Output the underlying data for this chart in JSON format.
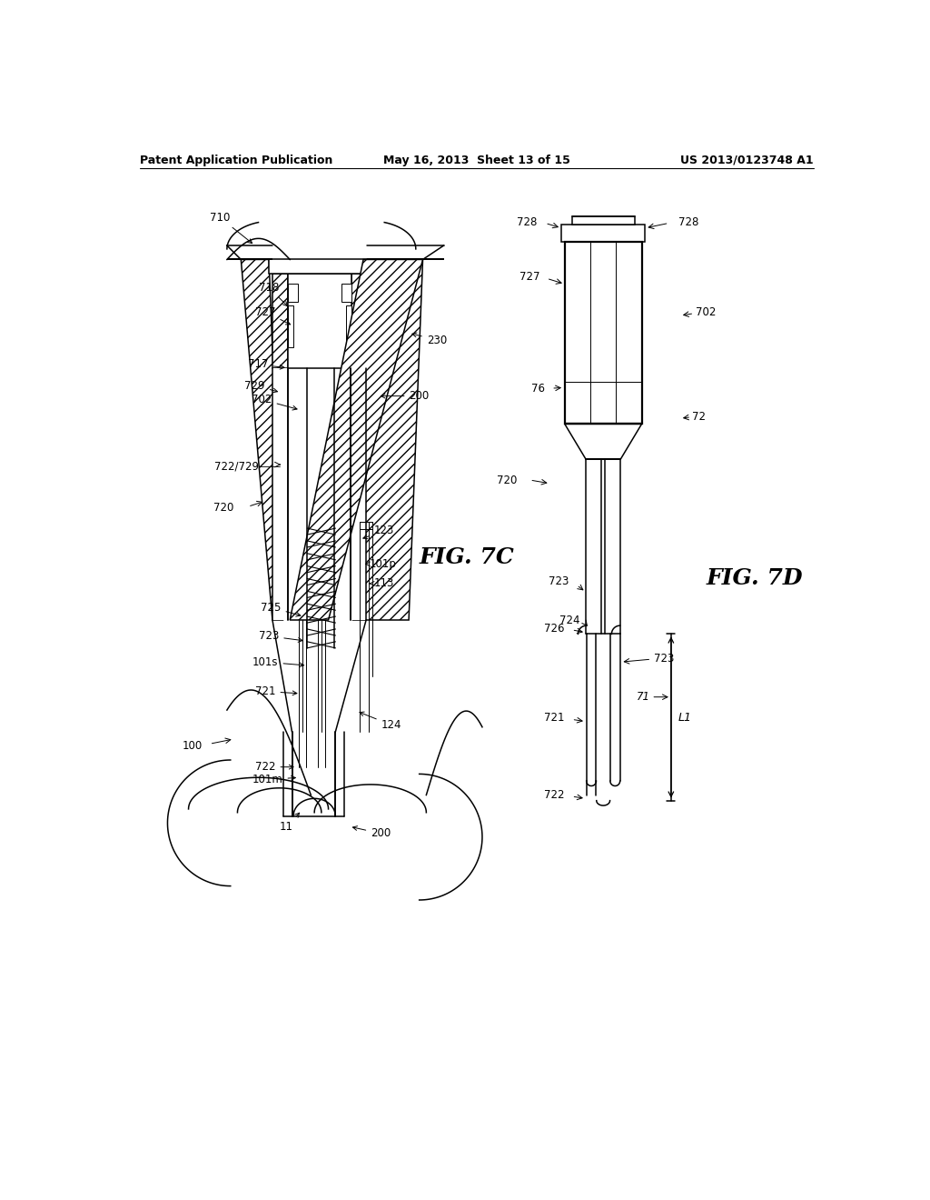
{
  "bg_color": "#ffffff",
  "line_color": "#000000",
  "header": {
    "left": "Patent Application Publication",
    "center": "May 16, 2013  Sheet 13 of 15",
    "right": "US 2013/0123748 A1"
  },
  "fig7c_label": "FIG. 7C",
  "fig7d_label": "FIG. 7D"
}
